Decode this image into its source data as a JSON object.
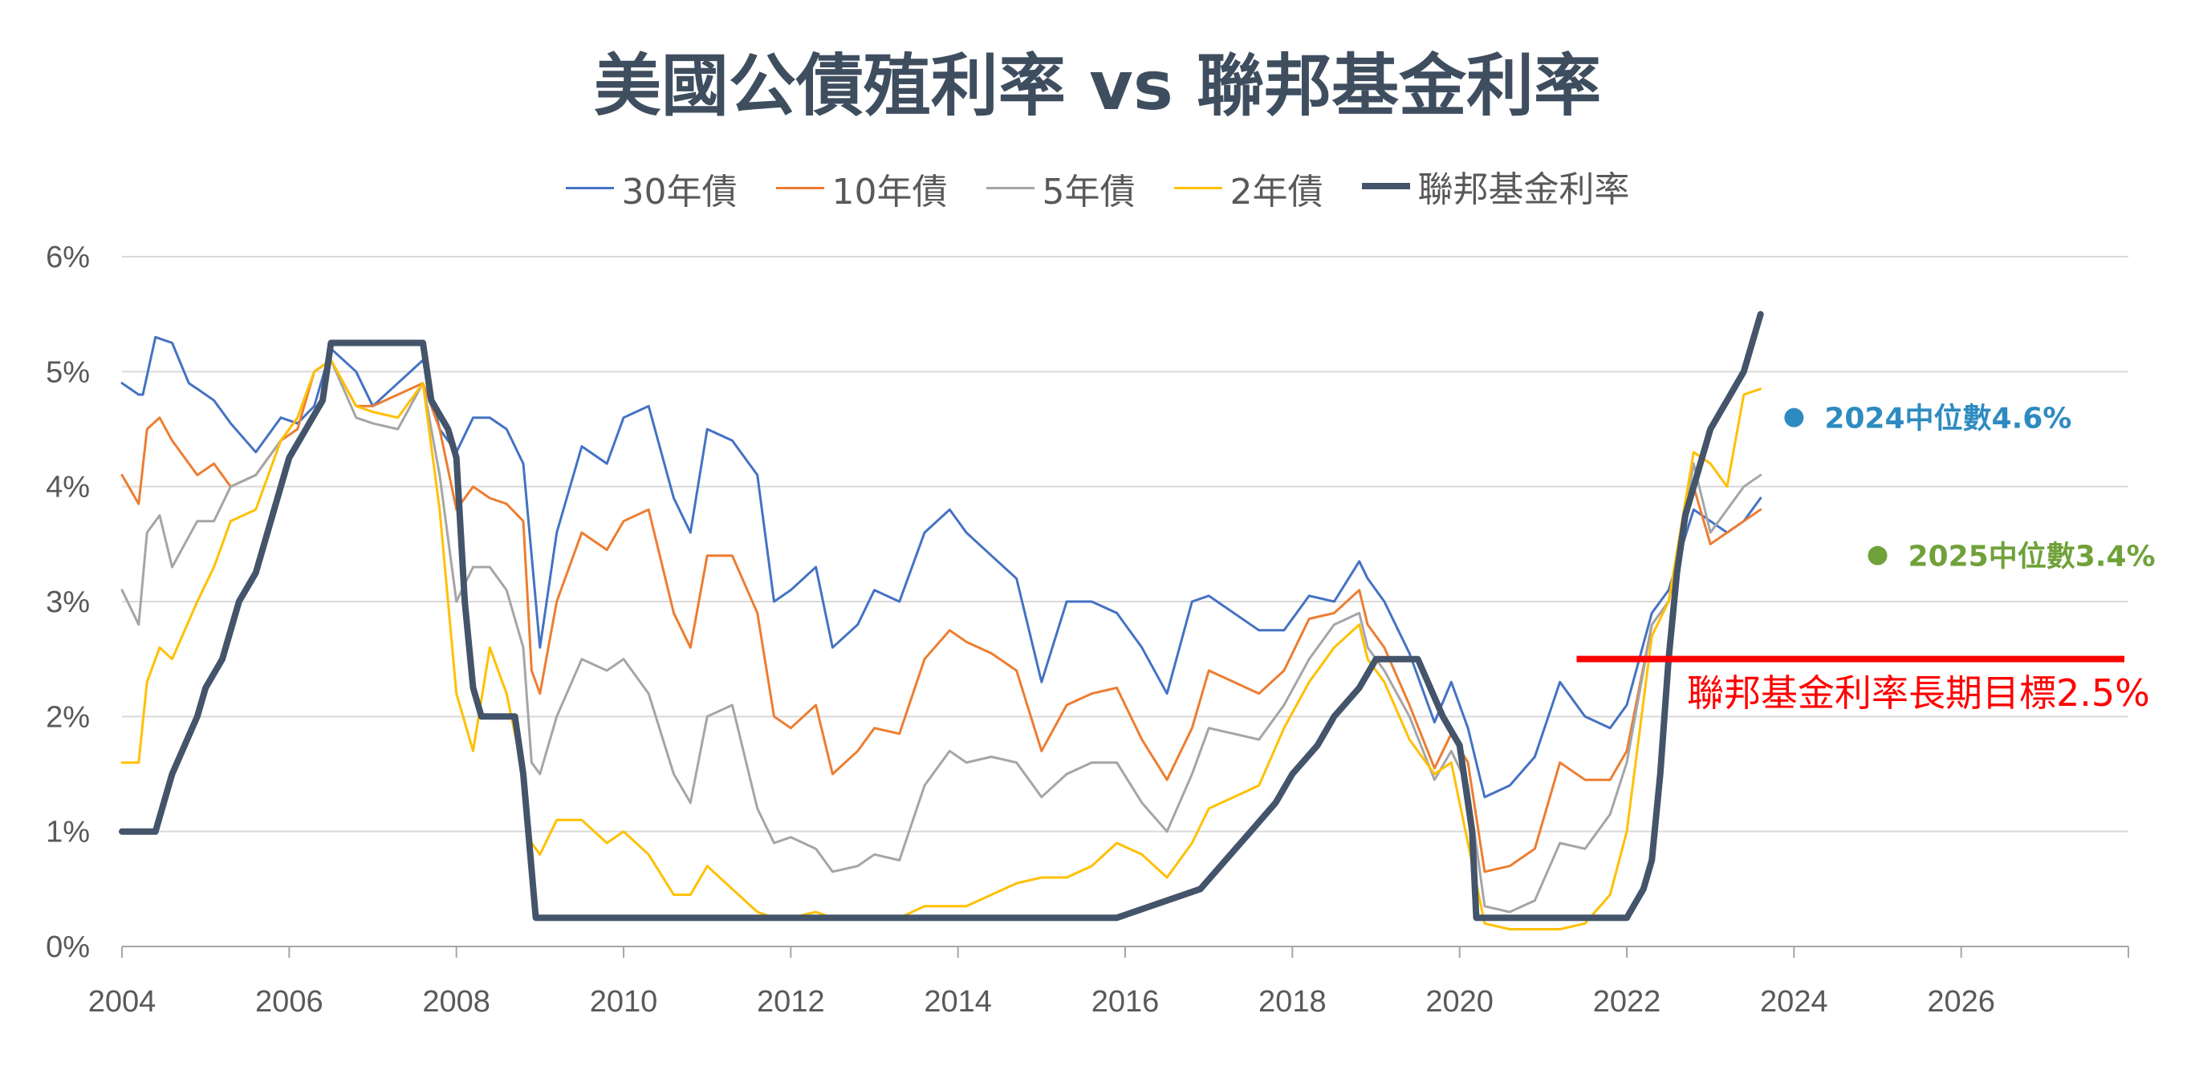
{
  "chart_data": {
    "type": "line",
    "title": "美國公債殖利率 vs 聯邦基金利率",
    "xlim": [
      2004,
      2028
    ],
    "ylim": [
      0,
      6
    ],
    "x_ticks": [
      "2004",
      "2006",
      "2008",
      "2010",
      "2012",
      "2014",
      "2016",
      "2018",
      "2020",
      "2022",
      "2024",
      "2026"
    ],
    "y_ticks": [
      "0%",
      "1%",
      "2%",
      "3%",
      "4%",
      "5%",
      "6%"
    ],
    "grid": "horizontal",
    "legend_position": "top",
    "series": [
      {
        "name": "30年債",
        "color": "#4472C4",
        "width": 3,
        "x": [
          2004.0,
          2004.2,
          2004.25,
          2004.4,
          2004.6,
          2004.8,
          2004.9,
          2005.1,
          2005.3,
          2005.6,
          2005.9,
          2006.1,
          2006.3,
          2006.5,
          2006.8,
          2007.0,
          2007.3,
          2007.6,
          2007.8,
          2008.0,
          2008.2,
          2008.4,
          2008.6,
          2008.8,
          2008.9,
          2009.0,
          2009.2,
          2009.5,
          2009.8,
          2010.0,
          2010.3,
          2010.6,
          2010.8,
          2011.0,
          2011.3,
          2011.6,
          2011.8,
          2012.0,
          2012.3,
          2012.5,
          2012.8,
          2013.0,
          2013.3,
          2013.6,
          2013.9,
          2014.1,
          2014.4,
          2014.7,
          2015.0,
          2015.3,
          2015.6,
          2015.9,
          2016.2,
          2016.5,
          2016.8,
          2017.0,
          2017.3,
          2017.6,
          2017.9,
          2018.2,
          2018.5,
          2018.8,
          2018.9,
          2019.1,
          2019.4,
          2019.7,
          2019.9,
          2020.1,
          2020.3,
          2020.6,
          2020.9,
          2021.2,
          2021.5,
          2021.8,
          2022.0,
          2022.3,
          2022.5,
          2022.8,
          2023.0,
          2023.2,
          2023.4,
          2023.6
        ],
        "y": [
          4.9,
          4.8,
          4.8,
          5.3,
          5.25,
          4.9,
          4.85,
          4.75,
          4.55,
          4.3,
          4.6,
          4.55,
          4.7,
          5.2,
          5.0,
          4.7,
          4.9,
          5.1,
          4.5,
          4.3,
          4.6,
          4.6,
          4.5,
          4.2,
          3.4,
          2.6,
          3.6,
          4.35,
          4.2,
          4.6,
          4.7,
          3.9,
          3.6,
          4.5,
          4.4,
          4.1,
          3.0,
          3.1,
          3.3,
          2.6,
          2.8,
          3.1,
          3.0,
          3.6,
          3.8,
          3.6,
          3.4,
          3.2,
          2.3,
          3.0,
          3.0,
          2.9,
          2.6,
          2.2,
          3.0,
          3.05,
          2.9,
          2.75,
          2.75,
          3.05,
          3.0,
          3.35,
          3.2,
          3.0,
          2.55,
          1.95,
          2.3,
          1.9,
          1.3,
          1.4,
          1.65,
          2.3,
          2.0,
          1.9,
          2.1,
          2.9,
          3.1,
          3.8,
          3.7,
          3.6,
          3.7,
          3.9
        ]
      },
      {
        "name": "10年債",
        "color": "#ED7D31",
        "width": 3,
        "x": [
          2004.0,
          2004.2,
          2004.3,
          2004.45,
          2004.6,
          2004.9,
          2005.1,
          2005.3,
          2005.6,
          2005.9,
          2006.1,
          2006.3,
          2006.5,
          2006.8,
          2007.0,
          2007.3,
          2007.6,
          2007.8,
          2008.0,
          2008.2,
          2008.4,
          2008.6,
          2008.8,
          2008.9,
          2009.0,
          2009.2,
          2009.5,
          2009.8,
          2010.0,
          2010.3,
          2010.6,
          2010.8,
          2011.0,
          2011.3,
          2011.6,
          2011.8,
          2012.0,
          2012.3,
          2012.5,
          2012.8,
          2013.0,
          2013.3,
          2013.6,
          2013.9,
          2014.1,
          2014.4,
          2014.7,
          2015.0,
          2015.3,
          2015.6,
          2015.9,
          2016.2,
          2016.5,
          2016.8,
          2017.0,
          2017.3,
          2017.6,
          2017.9,
          2018.2,
          2018.5,
          2018.8,
          2018.9,
          2019.1,
          2019.4,
          2019.7,
          2019.9,
          2020.1,
          2020.3,
          2020.6,
          2020.9,
          2021.2,
          2021.5,
          2021.8,
          2022.0,
          2022.3,
          2022.5,
          2022.8,
          2023.0,
          2023.2,
          2023.4,
          2023.6
        ],
        "y": [
          4.1,
          3.85,
          4.5,
          4.6,
          4.4,
          4.1,
          4.2,
          4.0,
          4.1,
          4.4,
          4.5,
          5.0,
          5.1,
          4.7,
          4.7,
          4.8,
          4.9,
          4.5,
          3.8,
          4.0,
          3.9,
          3.85,
          3.7,
          2.4,
          2.2,
          3.0,
          3.6,
          3.45,
          3.7,
          3.8,
          2.9,
          2.6,
          3.4,
          3.4,
          2.9,
          2.0,
          1.9,
          2.1,
          1.5,
          1.7,
          1.9,
          1.85,
          2.5,
          2.75,
          2.65,
          2.55,
          2.4,
          1.7,
          2.1,
          2.2,
          2.25,
          1.8,
          1.45,
          1.9,
          2.4,
          2.3,
          2.2,
          2.4,
          2.85,
          2.9,
          3.1,
          2.8,
          2.6,
          2.1,
          1.55,
          1.85,
          1.6,
          0.65,
          0.7,
          0.85,
          1.6,
          1.45,
          1.45,
          1.7,
          2.8,
          3.0,
          4.0,
          3.5,
          3.6,
          3.7,
          3.8
        ]
      },
      {
        "name": "5年債",
        "color": "#A5A5A5",
        "width": 3,
        "x": [
          2004.0,
          2004.2,
          2004.3,
          2004.45,
          2004.6,
          2004.9,
          2005.1,
          2005.3,
          2005.6,
          2005.9,
          2006.1,
          2006.3,
          2006.5,
          2006.8,
          2007.0,
          2007.3,
          2007.6,
          2007.8,
          2008.0,
          2008.2,
          2008.4,
          2008.6,
          2008.8,
          2008.9,
          2009.0,
          2009.2,
          2009.5,
          2009.8,
          2010.0,
          2010.3,
          2010.6,
          2010.8,
          2011.0,
          2011.3,
          2011.6,
          2011.8,
          2012.0,
          2012.3,
          2012.5,
          2012.8,
          2013.0,
          2013.3,
          2013.6,
          2013.9,
          2014.1,
          2014.4,
          2014.7,
          2015.0,
          2015.3,
          2015.6,
          2015.9,
          2016.2,
          2016.5,
          2016.8,
          2017.0,
          2017.3,
          2017.6,
          2017.9,
          2018.2,
          2018.5,
          2018.8,
          2018.9,
          2019.1,
          2019.4,
          2019.7,
          2019.9,
          2020.1,
          2020.3,
          2020.6,
          2020.9,
          2021.2,
          2021.5,
          2021.8,
          2022.0,
          2022.3,
          2022.5,
          2022.8,
          2023.0,
          2023.2,
          2023.4,
          2023.6
        ],
        "y": [
          3.1,
          2.8,
          3.6,
          3.75,
          3.3,
          3.7,
          3.7,
          4.0,
          4.1,
          4.4,
          4.6,
          5.0,
          5.1,
          4.6,
          4.55,
          4.5,
          4.9,
          4.1,
          3.0,
          3.3,
          3.3,
          3.1,
          2.6,
          1.6,
          1.5,
          2.0,
          2.5,
          2.4,
          2.5,
          2.2,
          1.5,
          1.25,
          2.0,
          2.1,
          1.2,
          0.9,
          0.95,
          0.85,
          0.65,
          0.7,
          0.8,
          0.75,
          1.4,
          1.7,
          1.6,
          1.65,
          1.6,
          1.3,
          1.5,
          1.6,
          1.6,
          1.25,
          1.0,
          1.5,
          1.9,
          1.85,
          1.8,
          2.1,
          2.5,
          2.8,
          2.9,
          2.6,
          2.4,
          2.0,
          1.45,
          1.7,
          1.4,
          0.35,
          0.3,
          0.4,
          0.9,
          0.85,
          1.15,
          1.6,
          2.8,
          3.0,
          4.2,
          3.6,
          3.8,
          4.0,
          4.1
        ]
      },
      {
        "name": "2年債",
        "color": "#FFC000",
        "width": 3,
        "x": [
          2004.0,
          2004.2,
          2004.3,
          2004.45,
          2004.6,
          2004.9,
          2005.1,
          2005.3,
          2005.6,
          2005.9,
          2006.1,
          2006.3,
          2006.5,
          2006.8,
          2007.0,
          2007.3,
          2007.6,
          2007.8,
          2008.0,
          2008.2,
          2008.4,
          2008.6,
          2008.8,
          2008.9,
          2009.0,
          2009.2,
          2009.5,
          2009.8,
          2010.0,
          2010.3,
          2010.6,
          2010.8,
          2011.0,
          2011.3,
          2011.6,
          2011.8,
          2012.0,
          2012.3,
          2012.5,
          2012.8,
          2013.0,
          2013.3,
          2013.6,
          2013.9,
          2014.1,
          2014.4,
          2014.7,
          2015.0,
          2015.3,
          2015.6,
          2015.9,
          2016.2,
          2016.5,
          2016.8,
          2017.0,
          2017.3,
          2017.6,
          2017.9,
          2018.2,
          2018.5,
          2018.8,
          2018.9,
          2019.1,
          2019.4,
          2019.7,
          2019.9,
          2020.1,
          2020.3,
          2020.6,
          2020.9,
          2021.2,
          2021.5,
          2021.8,
          2022.0,
          2022.3,
          2022.5,
          2022.8,
          2023.0,
          2023.2,
          2023.4,
          2023.6
        ],
        "y": [
          1.6,
          1.6,
          2.3,
          2.6,
          2.5,
          3.0,
          3.3,
          3.7,
          3.8,
          4.4,
          4.6,
          5.0,
          5.1,
          4.7,
          4.65,
          4.6,
          4.9,
          3.8,
          2.2,
          1.7,
          2.6,
          2.2,
          1.5,
          0.9,
          0.8,
          1.1,
          1.1,
          0.9,
          1.0,
          0.8,
          0.45,
          0.45,
          0.7,
          0.5,
          0.3,
          0.25,
          0.25,
          0.3,
          0.25,
          0.25,
          0.25,
          0.25,
          0.35,
          0.35,
          0.35,
          0.45,
          0.55,
          0.6,
          0.6,
          0.7,
          0.9,
          0.8,
          0.6,
          0.9,
          1.2,
          1.3,
          1.4,
          1.9,
          2.3,
          2.6,
          2.8,
          2.5,
          2.3,
          1.8,
          1.5,
          1.6,
          0.9,
          0.2,
          0.15,
          0.15,
          0.15,
          0.2,
          0.45,
          1.0,
          2.7,
          3.0,
          4.3,
          4.2,
          4.0,
          4.8,
          4.85
        ]
      },
      {
        "name": "聯邦基金利率",
        "color": "#44546A",
        "width": 8,
        "x": [
          2004.0,
          2004.4,
          2004.5,
          2004.6,
          2004.75,
          2004.9,
          2005.0,
          2005.2,
          2005.4,
          2005.6,
          2005.8,
          2006.0,
          2006.2,
          2006.4,
          2006.5,
          2007.6,
          2007.7,
          2007.9,
          2008.0,
          2008.1,
          2008.2,
          2008.3,
          2008.7,
          2008.8,
          2008.95,
          2015.9,
          2016.9,
          2017.2,
          2017.5,
          2017.8,
          2018.0,
          2018.3,
          2018.5,
          2018.8,
          2019.0,
          2019.5,
          2019.65,
          2019.8,
          2020.0,
          2020.15,
          2020.2,
          2022.0,
          2022.2,
          2022.3,
          2022.4,
          2022.5,
          2022.6,
          2022.7,
          2022.9,
          2023.0,
          2023.2,
          2023.4,
          2023.6
        ],
        "y": [
          1.0,
          1.0,
          1.25,
          1.5,
          1.75,
          2.0,
          2.25,
          2.5,
          3.0,
          3.25,
          3.75,
          4.25,
          4.5,
          4.75,
          5.25,
          5.25,
          4.75,
          4.5,
          4.25,
          3.0,
          2.25,
          2.0,
          2.0,
          1.5,
          0.25,
          0.25,
          0.5,
          0.75,
          1.0,
          1.25,
          1.5,
          1.75,
          2.0,
          2.25,
          2.5,
          2.5,
          2.25,
          2.0,
          1.75,
          1.0,
          0.25,
          0.25,
          0.5,
          0.75,
          1.5,
          2.5,
          3.25,
          3.75,
          4.25,
          4.5,
          4.75,
          5.0,
          5.5
        ]
      }
    ],
    "annotations": [
      {
        "text": "2024中位數4.6%",
        "x": 2024,
        "y": 4.6,
        "color": "#2E8BC0"
      },
      {
        "text": "2025中位數3.4%",
        "x": 2025,
        "y": 3.4,
        "color": "#70A13A"
      },
      {
        "text": "聯邦基金利率長期目標2.5%",
        "x_start": 2021.4,
        "x_end": 2028,
        "y": 2.5,
        "color": "#FF0000"
      }
    ]
  }
}
